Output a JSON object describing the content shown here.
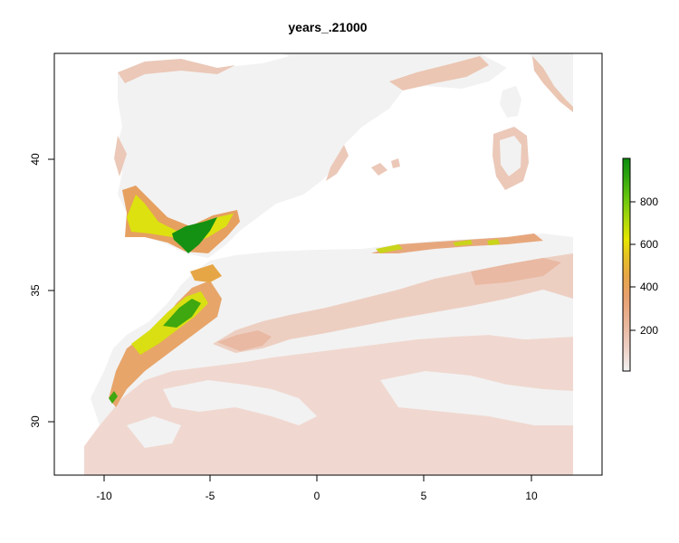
{
  "title": "years_.21000",
  "chart_data": {
    "type": "heatmap",
    "title": "years_.21000",
    "xlim": [
      -12.4,
      13.4
    ],
    "ylim": [
      28,
      44.1
    ],
    "x_ticks": [
      -10,
      -5,
      0,
      5,
      10
    ],
    "y_ticks": [
      30,
      35,
      40
    ],
    "legend": {
      "placement": "right",
      "range": [
        0,
        990
      ],
      "ticks": [
        200,
        400,
        600,
        800
      ],
      "colors": [
        "#f2f2f2",
        "#eed2c8",
        "#e9b69c",
        "#e7a06e",
        "#e6a646",
        "#e6c521",
        "#e6e600",
        "#a6d70a",
        "#64c40f",
        "#2ba40e",
        "#0b8c0c"
      ]
    }
  },
  "colors": {
    "background": "#f2f2f2",
    "low": "#efd6cc",
    "mid": "#e9b49a",
    "high": "#e6a050",
    "yellow": "#e6e600",
    "green": "#0b8c0c"
  }
}
